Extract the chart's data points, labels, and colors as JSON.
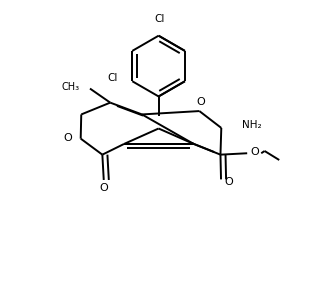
{
  "bg_color": "#ffffff",
  "lw": 1.4,
  "dbo": 0.016,
  "figsize": [
    3.2,
    2.84
  ],
  "dpi": 100,
  "xlim": [
    0,
    1
  ],
  "ylim": [
    0,
    1
  ]
}
